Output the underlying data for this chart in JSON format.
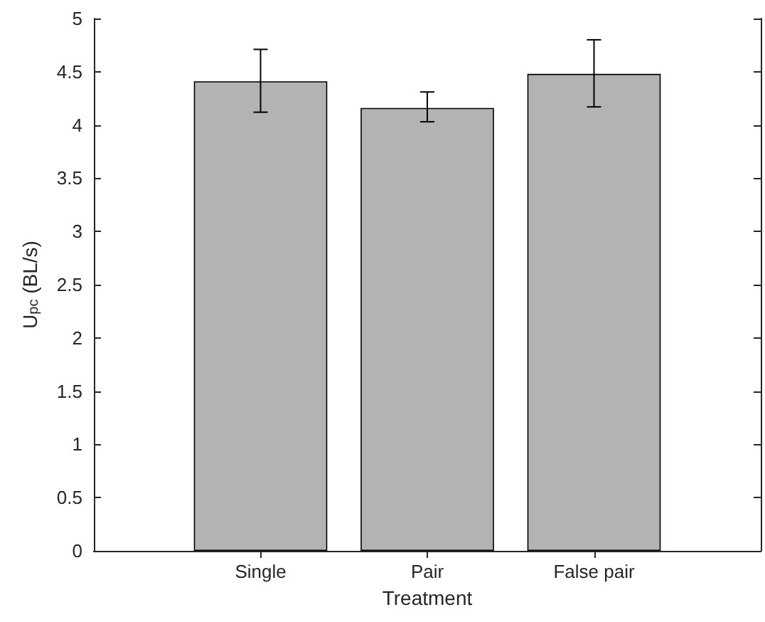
{
  "chart_data": {
    "type": "bar",
    "xlabel": "Treatment",
    "ylabel": "U$_{pc}$ (BL/s)",
    "categories": [
      "Single",
      "Pair",
      "False pair"
    ],
    "values": [
      4.41,
      4.16,
      4.48
    ],
    "errors": [
      [
        4.12,
        4.71
      ],
      [
        4.03,
        4.31
      ],
      [
        4.17,
        4.8
      ]
    ],
    "color": "#b3b3b3",
    "ylim": [
      0,
      5
    ],
    "yticks": [
      0,
      0.5,
      1,
      1.5,
      2,
      2.5,
      3,
      3.5,
      4,
      4.5,
      5
    ],
    "grid": false
  }
}
